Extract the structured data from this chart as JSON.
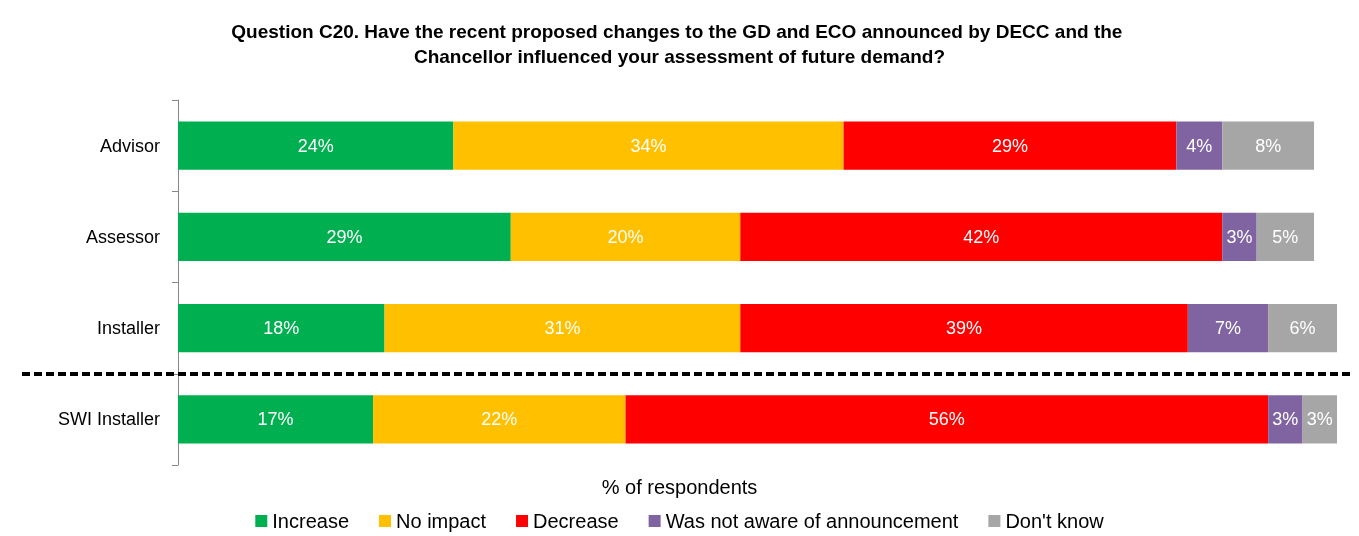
{
  "chart_data": {
    "type": "bar",
    "orientation": "horizontal",
    "stacked": true,
    "title": "Question C20. Have the recent proposed changes to the GD and ECO announced by DECC and the Chancellor influenced your assessment of future demand?",
    "xlabel": "% of respondents",
    "categories": [
      "Advisor",
      "Assessor",
      "Installer",
      "SWI Installer"
    ],
    "series": [
      {
        "name": "Increase",
        "color": "#00b050",
        "values": [
          24,
          29,
          18,
          17
        ],
        "value_labels": [
          "24%",
          "29%",
          "18%",
          "17%"
        ]
      },
      {
        "name": "No impact",
        "color": "#ffc000",
        "values": [
          34,
          20,
          31,
          22
        ],
        "value_labels": [
          "34%",
          "20%",
          "31%",
          "22%"
        ]
      },
      {
        "name": "Decrease",
        "color": "#ff0000",
        "values": [
          29,
          42,
          39,
          56
        ],
        "value_labels": [
          "29%",
          "42%",
          "39%",
          "56%"
        ]
      },
      {
        "name": "Was not aware of announcement",
        "color": "#8064a2",
        "values": [
          4,
          3,
          7,
          3
        ],
        "value_labels": [
          "4%",
          "3%",
          "7%",
          "3%"
        ]
      },
      {
        "name": "Don't know",
        "color": "#a6a6a6",
        "values": [
          8,
          5,
          6,
          3
        ],
        "value_labels": [
          "8%",
          "5%",
          "6%",
          "3%"
        ]
      }
    ],
    "legend": "bottom"
  }
}
